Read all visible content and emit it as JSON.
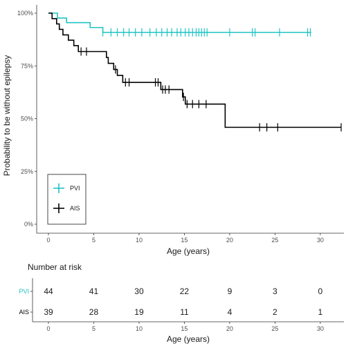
{
  "chart_data": [
    {
      "type": "line",
      "subtype": "kaplan-meier",
      "ylabel": "Probability to be without epilepsy",
      "xlabel": "Age (years)",
      "xlim": [
        0,
        32.5
      ],
      "ylim": [
        0,
        1
      ],
      "xticks": [
        0,
        5,
        10,
        15,
        20,
        25,
        30
      ],
      "yticks": [
        0,
        0.25,
        0.5,
        0.75,
        1.0
      ],
      "ytick_labels": [
        "0%",
        "25%",
        "50%",
        "75%",
        "100%"
      ],
      "grid": false,
      "legend_position": "bottom-left",
      "series": [
        {
          "name": "PVI",
          "color": "#20c3c3",
          "steps": [
            [
              0,
              1.0
            ],
            [
              1.0,
              0.977
            ],
            [
              2.0,
              0.955
            ],
            [
              4.6,
              0.932
            ],
            [
              6.0,
              0.909
            ],
            [
              29.0,
              0.909
            ]
          ],
          "censored": [
            6.0,
            6.9,
            7.6,
            8.3,
            8.9,
            9.6,
            10.3,
            11.2,
            11.9,
            12.5,
            13.1,
            13.6,
            14.2,
            14.6,
            15.1,
            15.5,
            15.9,
            16.3,
            16.6,
            16.9,
            17.2,
            17.5,
            20.0,
            22.5,
            22.8,
            25.5,
            28.6,
            28.9
          ]
        },
        {
          "name": "AIS",
          "color": "#000000",
          "steps": [
            [
              0,
              1.0
            ],
            [
              0.4,
              0.974
            ],
            [
              0.9,
              0.949
            ],
            [
              1.2,
              0.923
            ],
            [
              1.6,
              0.897
            ],
            [
              2.2,
              0.872
            ],
            [
              2.8,
              0.846
            ],
            [
              3.3,
              0.818
            ],
            [
              6.4,
              0.79
            ],
            [
              6.6,
              0.762
            ],
            [
              7.2,
              0.733
            ],
            [
              7.6,
              0.705
            ],
            [
              8.2,
              0.672
            ],
            [
              12.4,
              0.638
            ],
            [
              14.8,
              0.603
            ],
            [
              15.1,
              0.569
            ],
            [
              19.5,
              0.459
            ],
            [
              32.3,
              0.459
            ]
          ],
          "censored": [
            3.6,
            4.2,
            7.4,
            8.5,
            8.9,
            11.8,
            12.1,
            12.6,
            12.9,
            13.3,
            14.9,
            15.3,
            15.9,
            16.6,
            17.4,
            23.3,
            24.1,
            25.3,
            32.3
          ]
        }
      ]
    },
    {
      "type": "table",
      "title": "Number at risk",
      "xlabel": "Age (years)",
      "xticks": [
        0,
        5,
        10,
        15,
        20,
        25,
        30
      ],
      "rows": [
        {
          "name": "PVI",
          "color": "#20c3c3",
          "values": [
            44,
            41,
            30,
            22,
            9,
            3,
            0
          ]
        },
        {
          "name": "AIS",
          "color": "#000000",
          "values": [
            39,
            28,
            19,
            11,
            4,
            2,
            1
          ]
        }
      ]
    }
  ]
}
